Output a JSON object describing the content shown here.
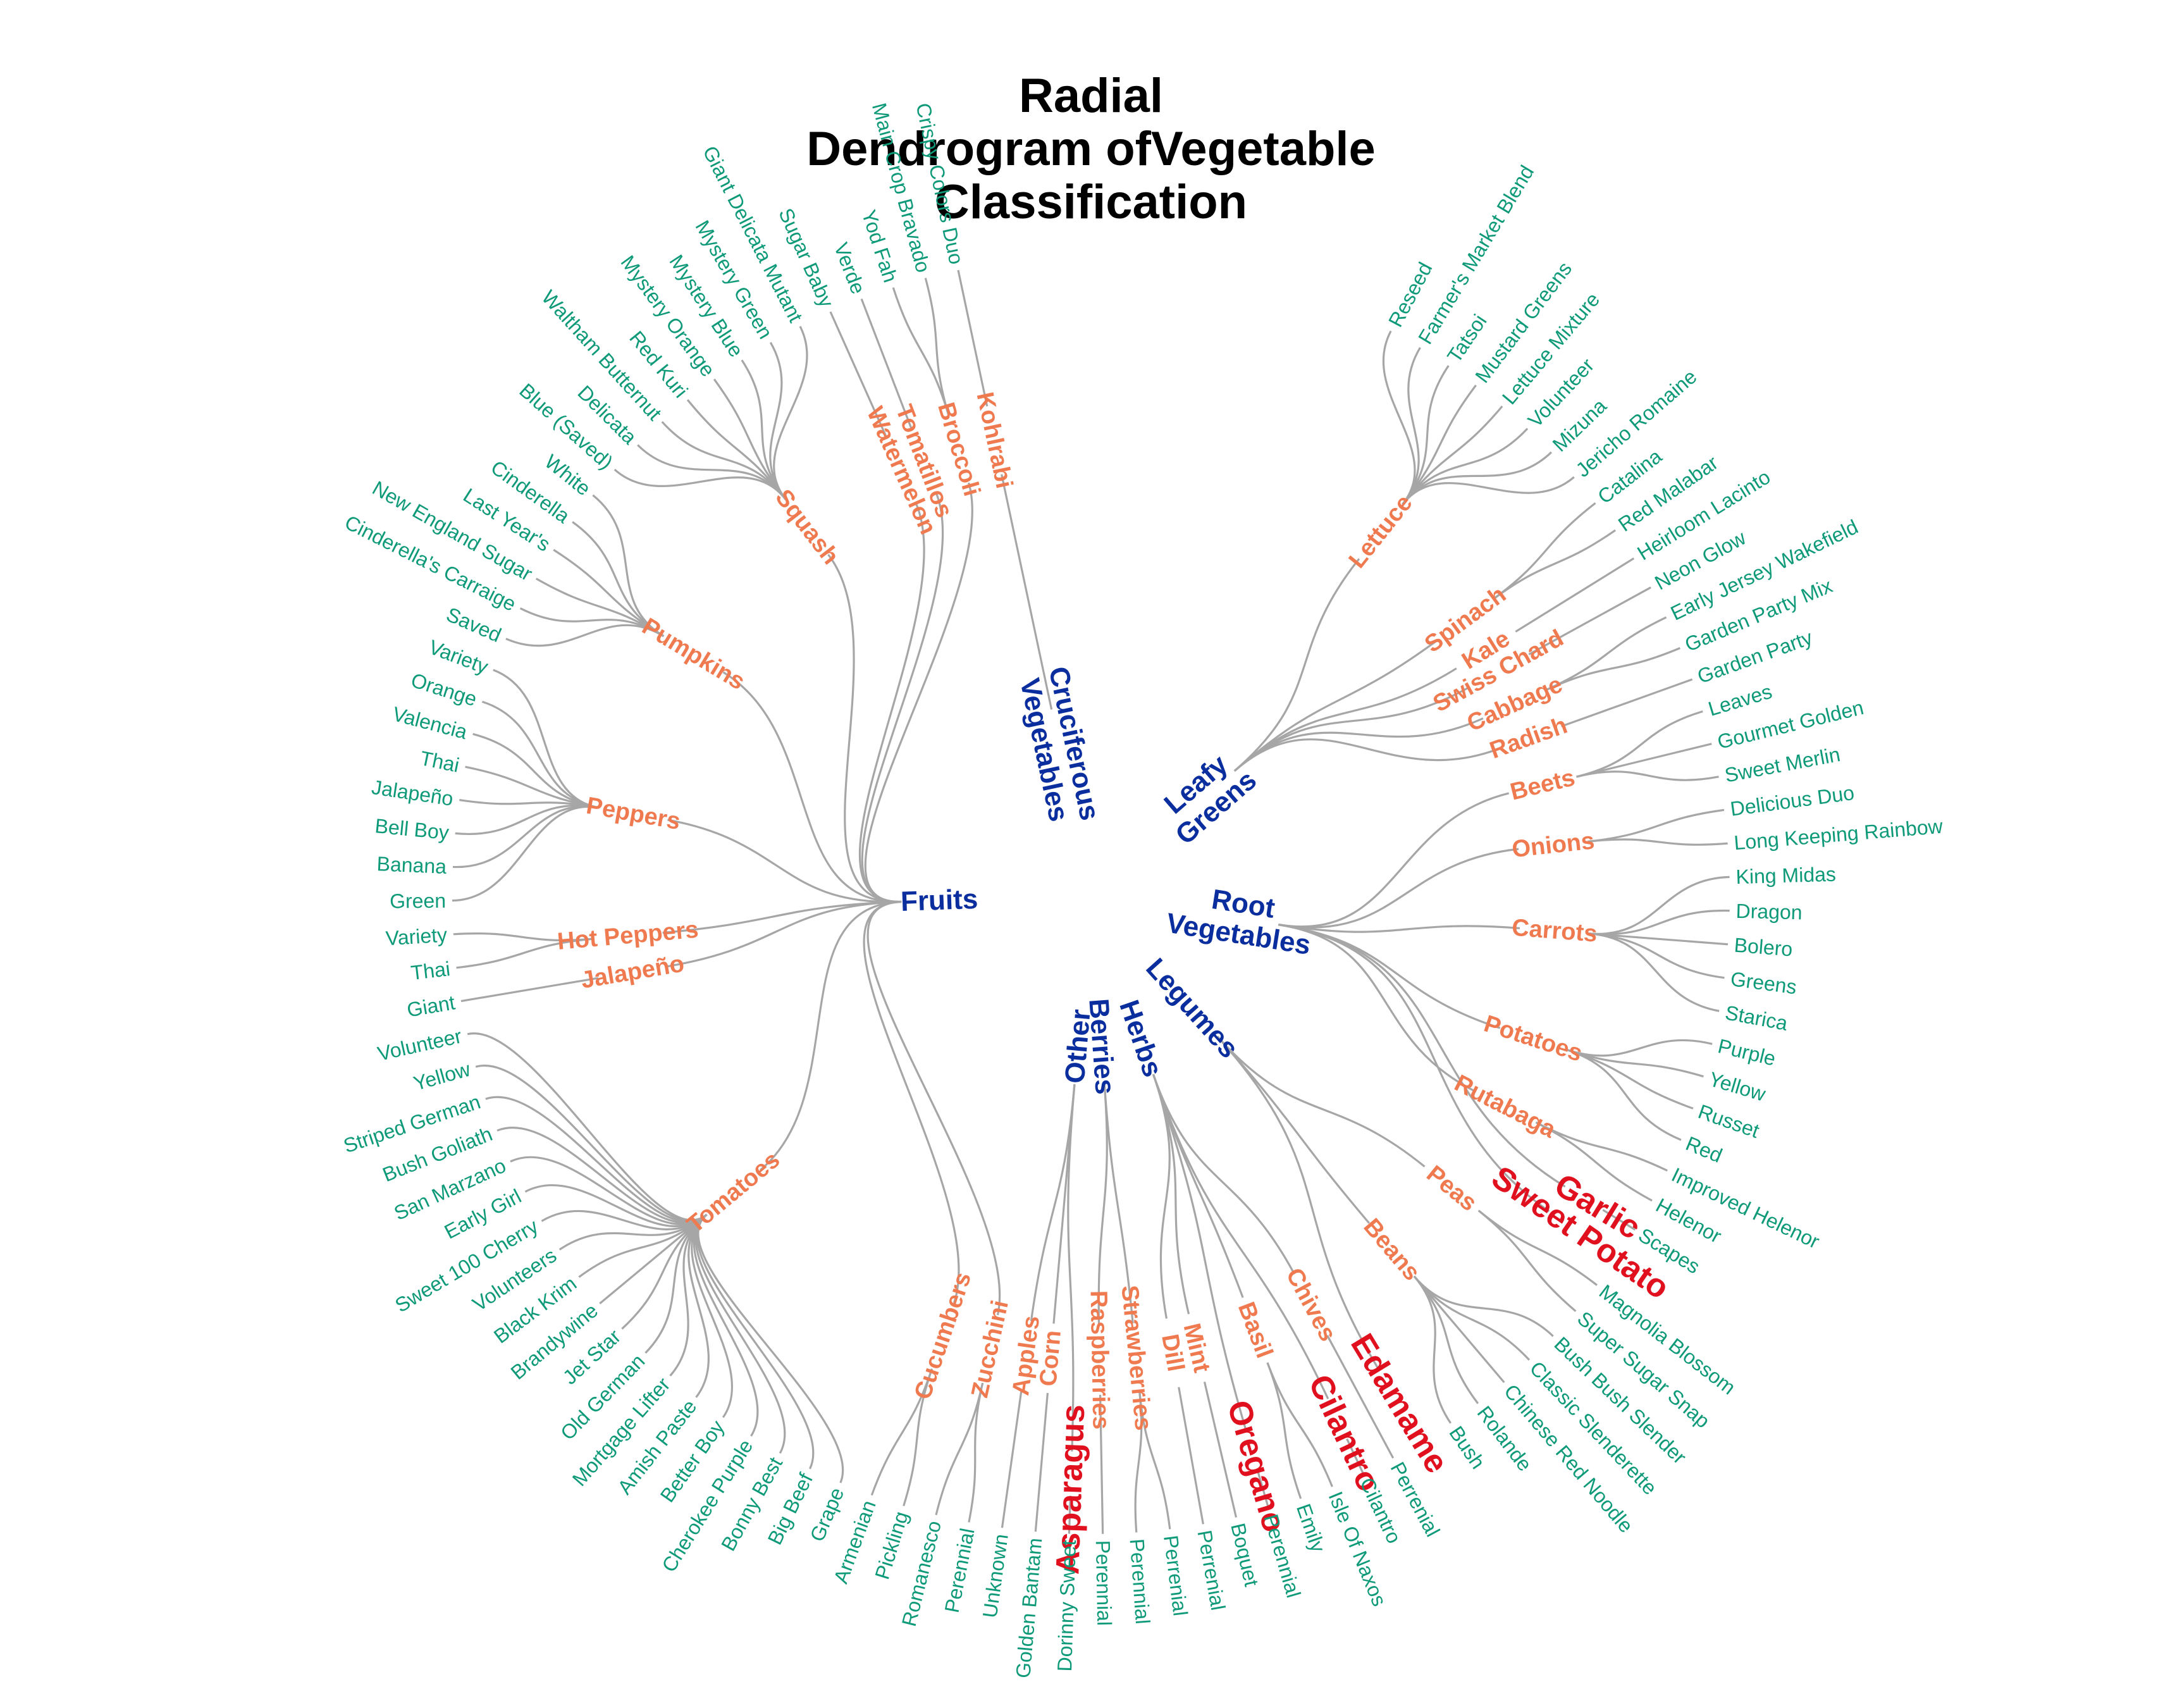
{
  "title_lines": [
    "Radial",
    "Dendrogram ofVegetable",
    "Classification"
  ],
  "colors": {
    "category": "#0a2e9e",
    "subcategory": "#f07a50",
    "highlight": "#e0101e",
    "leaf": "#0e9a78",
    "edge": "#a6a6a6"
  },
  "categories": [
    {
      "name": "Leafy Greens",
      "lines": [
        "Leafy",
        "Greens"
      ],
      "children": [
        {
          "name": "Lettuce",
          "leaves": [
            "Reseed",
            "Farmer's Market Blend",
            "Tatsoi",
            "Mustard Greens",
            "Lettuce Mixture",
            "Volunteer",
            "Mizuna",
            "Jericho Romaine"
          ]
        },
        {
          "name": "Spinach",
          "leaves": [
            "Catalina",
            "Red Malabar"
          ]
        },
        {
          "name": "Kale",
          "leaves": [
            "Heirloom Lacinto"
          ]
        },
        {
          "name": "Swiss Chard",
          "leaves": [
            "Neon Glow"
          ]
        },
        {
          "name": "Cabbage",
          "leaves": [
            "Early Jersey Wakefield",
            "Garden Party Mix"
          ]
        },
        {
          "name": "Radish",
          "leaves": [
            "Garden Party"
          ]
        }
      ]
    },
    {
      "name": "Root Vegetables",
      "lines": [
        "Root",
        "Vegetables"
      ],
      "children": [
        {
          "name": "Beets",
          "leaves": [
            "Leaves",
            "Gourmet Golden",
            "Sweet Merlin"
          ]
        },
        {
          "name": "Onions",
          "leaves": [
            "Delicious Duo",
            "Long Keeping Rainbow"
          ]
        },
        {
          "name": "Carrots",
          "leaves": [
            "King Midas",
            "Dragon",
            "Bolero",
            "Greens",
            "Starica"
          ]
        },
        {
          "name": "Potatoes",
          "leaves": [
            "Purple",
            "Yellow",
            "Russet",
            "Red"
          ]
        },
        {
          "name": "Rutabaga",
          "leaves": [
            "Improved Helenor",
            "Helenor"
          ]
        },
        {
          "name": "Garlic",
          "highlight": true,
          "leaves": [
            "Scapes"
          ]
        },
        {
          "name": "Sweet Potato",
          "highlight": true,
          "leaves": []
        }
      ]
    },
    {
      "name": "Legumes",
      "lines": [
        "Legumes"
      ],
      "children": [
        {
          "name": "Peas",
          "leaves": [
            "Magnolia Blossom",
            "Super Sugar Snap"
          ]
        },
        {
          "name": "Beans",
          "leaves": [
            "Bush Bush Slender",
            "Classic Slenderette",
            "Chinese Red Noodle",
            "Rolande",
            "Bush"
          ]
        },
        {
          "name": "Edamame",
          "highlight": true,
          "leaves": []
        }
      ]
    },
    {
      "name": "Herbs",
      "lines": [
        "Herbs"
      ],
      "children": [
        {
          "name": "Chives",
          "leaves": [
            "Perrenial"
          ]
        },
        {
          "name": "Cilantro",
          "highlight": true,
          "leaves": [
            "Cilantro"
          ]
        },
        {
          "name": "Basil",
          "leaves": [
            "Isle Of Naxos",
            "Emily"
          ]
        },
        {
          "name": "Oregano",
          "highlight": true,
          "leaves": [
            "Perennial"
          ]
        },
        {
          "name": "Mint",
          "leaves": [
            "Boquet"
          ]
        },
        {
          "name": "Dill",
          "leaves": [
            "Perrenial"
          ]
        }
      ]
    },
    {
      "name": "Berries",
      "lines": [
        "Berries"
      ],
      "children": [
        {
          "name": "Strawberries",
          "leaves": [
            "Perrenial",
            "Perennial"
          ]
        },
        {
          "name": "Raspberries",
          "leaves": [
            "Perennial"
          ]
        }
      ]
    },
    {
      "name": "Other",
      "lines": [
        "Other"
      ],
      "children": [
        {
          "name": "Asparagus",
          "highlight": true,
          "leaves": [
            "Dorinny Sweet"
          ]
        },
        {
          "name": "Corn",
          "leaves": [
            "Golden Bantam"
          ]
        },
        {
          "name": "Apples",
          "leaves": [
            "Unknown"
          ]
        }
      ]
    },
    {
      "name": "Fruits",
      "lines": [
        "Fruits"
      ],
      "children": [
        {
          "name": "Zucchini",
          "leaves": [
            "Perennial",
            "Romanesco"
          ]
        },
        {
          "name": "Cucumbers",
          "leaves": [
            "Pickling",
            "Armenian"
          ]
        },
        {
          "name": "Tomatoes",
          "leaves": [
            "Grape",
            "Big Beef",
            "Bonny Best",
            "Cherokee Purple",
            "Better Boy",
            "Amish Paste",
            "Mortgage Lifter",
            "Old German",
            "Jet Star",
            "Brandywine",
            "Black Krim",
            "Volunteers",
            "Sweet 100 Cherry",
            "Early Girl",
            "San Marzano",
            "Bush Goliath",
            "Striped German",
            "Yellow",
            "Volunteer"
          ]
        },
        {
          "name": "Jalapeño",
          "leaves": [
            "Giant"
          ]
        },
        {
          "name": "Hot Peppers",
          "leaves": [
            "Thai",
            "Variety"
          ]
        },
        {
          "name": "Peppers",
          "leaves": [
            "Green",
            "Banana",
            "Bell Boy",
            "Jalapeño",
            "Thai",
            "Valencia",
            "Orange",
            "Variety"
          ]
        },
        {
          "name": "Pumpkins",
          "leaves": [
            "Saved",
            "Cinderella's Carraige",
            "New England Sugar",
            "Last Year's",
            "Cinderella",
            "White"
          ]
        },
        {
          "name": "Squash",
          "leaves": [
            "Blue (Saved)",
            "Delicata",
            "Waltham Butternut",
            "Red Kuri",
            "Mystery Orange",
            "Mystery Blue",
            "Mystery Green",
            "Giant Delicata Mutant"
          ]
        },
        {
          "name": "Watermelon",
          "leaves": [
            "Sugar Baby"
          ]
        },
        {
          "name": "Tomatillos",
          "leaves": [
            "Verde"
          ]
        },
        {
          "name": "Broccoli",
          "leaves": [
            "Yod Fah",
            "Main Crop Bravado"
          ]
        }
      ]
    },
    {
      "name": "Cruciferous Vegetables",
      "lines": [
        "Cruciferous",
        "Vegetables"
      ],
      "children": [
        {
          "name": "Kohlrabi",
          "leaves": [
            "Crispy Colors Duo"
          ]
        }
      ]
    }
  ]
}
